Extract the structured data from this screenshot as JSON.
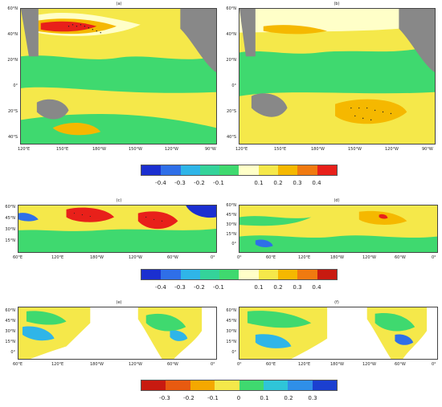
{
  "panels": [
    {
      "id": "a",
      "label": "(a)",
      "ylabels": [
        "60°N",
        "40°N",
        "20°N",
        "0°",
        "20°S",
        "40°S"
      ],
      "xlabels": [
        "120°E",
        "150°E",
        "180°W",
        "150°W",
        "120°W",
        "90°W"
      ]
    },
    {
      "id": "b",
      "label": "(b)",
      "ylabels": [
        "60°N",
        "40°N",
        "20°N",
        "0°",
        "20°S",
        "40°S"
      ],
      "xlabels": [
        "120°E",
        "150°E",
        "180°W",
        "150°W",
        "120°W",
        "90°W"
      ]
    },
    {
      "id": "c",
      "label": "(c)",
      "ylabels": [
        "60°N",
        "45°N",
        "30°N",
        "15°N"
      ],
      "xlabels": [
        "60°E",
        "120°E",
        "180°W",
        "120°W",
        "60°W",
        "0°"
      ]
    },
    {
      "id": "d",
      "label": "(d)",
      "ylabels": [
        "60°N",
        "45°N",
        "30°N",
        "15°N",
        "0°"
      ],
      "xlabels": [
        "0°",
        "60°E",
        "120°E",
        "180°W",
        "120°W",
        "60°W",
        "0°"
      ]
    },
    {
      "id": "e",
      "label": "(e)",
      "ylabels": [
        "60°N",
        "45°N",
        "30°N",
        "15°N",
        "0°"
      ],
      "xlabels": [
        "60°E",
        "120°E",
        "180°W",
        "120°W",
        "60°W",
        "0°"
      ]
    },
    {
      "id": "f",
      "label": "(f)",
      "ylabels": [
        "60°N",
        "45°N",
        "30°N",
        "15°N",
        "0°"
      ],
      "xlabels": [
        "0°",
        "60°E",
        "120°E",
        "180°W",
        "120°W",
        "60°W",
        "0°"
      ]
    }
  ],
  "colorbars": [
    {
      "labels": [
        "-0.4",
        "-0.3",
        "-0.2",
        "-0.1",
        "0.1",
        "0.2",
        "0.3",
        "0.4"
      ],
      "colors": [
        "#1b2fd0",
        "#2f6fe8",
        "#2fb5e8",
        "#34d39a",
        "#3fd96f",
        "#ffffc8",
        "#f5e84a",
        "#f5b800",
        "#f07a10",
        "#e8201a"
      ]
    },
    {
      "labels": [
        "-0.4",
        "-0.3",
        "-0.2",
        "-0.1",
        "0.1",
        "0.2",
        "0.3",
        "0.4"
      ],
      "colors": [
        "#1b2fd0",
        "#2f6fe8",
        "#2fb5e8",
        "#34d39a",
        "#3fd96f",
        "#ffffc8",
        "#f5e84a",
        "#f5b800",
        "#f07a10",
        "#c81a10"
      ]
    },
    {
      "labels": [
        "-0.3",
        "-0.2",
        "-0.1",
        "0",
        "0.1",
        "0.2",
        "0.3"
      ],
      "colors": [
        "#c81a10",
        "#e85a10",
        "#f5a800",
        "#f5e84a",
        "#3fd96f",
        "#2fc5d8",
        "#2f8fe8",
        "#1b3fd0"
      ]
    }
  ],
  "colors": {
    "land": "#888888",
    "ocean_green": "#3fd96f",
    "yellow": "#f5e84a",
    "light": "#ffffc8",
    "orange": "#f5b800",
    "red": "#e8201a"
  }
}
